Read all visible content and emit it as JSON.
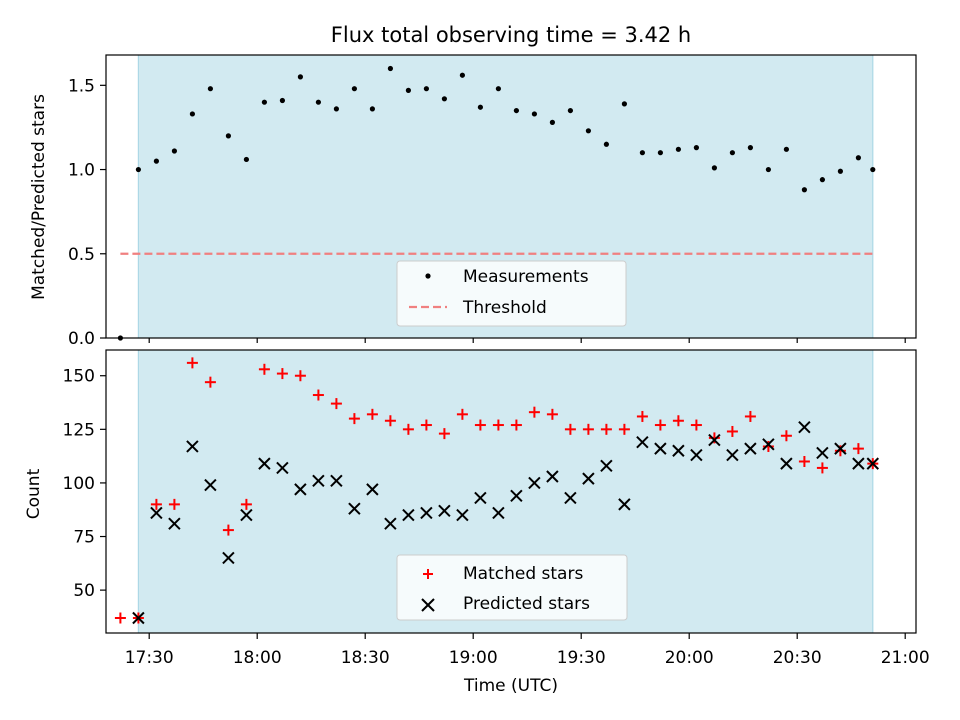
{
  "colors": {
    "background": "#ffffff",
    "observing_window": "#add8e6",
    "measurement": "#000000",
    "threshold": "#f08080",
    "matched": "#ff0000",
    "predicted": "#000000"
  },
  "chart_data": [
    {
      "type": "scatter",
      "title": "Flux total observing time = 3.42 h",
      "xlabel": "",
      "ylabel": "Matched/Predicted stars",
      "xlim": [
        "17:18",
        "21:03"
      ],
      "ylim": [
        0,
        1.68
      ],
      "yticks": [
        "0.0",
        "0.5",
        "1.0",
        "1.5"
      ],
      "observing_window": [
        "17:27",
        "20:51"
      ],
      "threshold": {
        "label": "Threshold",
        "value": 0.5,
        "from": "17:22",
        "to": "20:51"
      },
      "legend": {
        "position": "lower center",
        "entries": [
          "Measurements",
          "Threshold"
        ]
      },
      "series": [
        {
          "name": "Measurements",
          "points": [
            [
              "17:22",
              0.0
            ],
            [
              "17:27",
              1.0
            ],
            [
              "17:32",
              1.05
            ],
            [
              "17:37",
              1.11
            ],
            [
              "17:42",
              1.33
            ],
            [
              "17:47",
              1.48
            ],
            [
              "17:52",
              1.2
            ],
            [
              "17:57",
              1.06
            ],
            [
              "18:02",
              1.4
            ],
            [
              "18:07",
              1.41
            ],
            [
              "18:12",
              1.55
            ],
            [
              "18:17",
              1.4
            ],
            [
              "18:22",
              1.36
            ],
            [
              "18:27",
              1.48
            ],
            [
              "18:32",
              1.36
            ],
            [
              "18:37",
              1.6
            ],
            [
              "18:42",
              1.47
            ],
            [
              "18:47",
              1.48
            ],
            [
              "18:52",
              1.42
            ],
            [
              "18:57",
              1.56
            ],
            [
              "19:02",
              1.37
            ],
            [
              "19:07",
              1.48
            ],
            [
              "19:12",
              1.35
            ],
            [
              "19:17",
              1.33
            ],
            [
              "19:22",
              1.28
            ],
            [
              "19:27",
              1.35
            ],
            [
              "19:32",
              1.23
            ],
            [
              "19:37",
              1.15
            ],
            [
              "19:42",
              1.39
            ],
            [
              "19:47",
              1.1
            ],
            [
              "19:52",
              1.1
            ],
            [
              "19:57",
              1.12
            ],
            [
              "20:02",
              1.13
            ],
            [
              "20:07",
              1.01
            ],
            [
              "20:12",
              1.1
            ],
            [
              "20:17",
              1.13
            ],
            [
              "20:22",
              1.0
            ],
            [
              "20:27",
              1.12
            ],
            [
              "20:32",
              0.88
            ],
            [
              "20:37",
              0.94
            ],
            [
              "20:42",
              0.99
            ],
            [
              "20:47",
              1.07
            ],
            [
              "20:51",
              1.0
            ]
          ]
        }
      ]
    },
    {
      "type": "scatter",
      "title": "",
      "xlabel": "Time (UTC)",
      "ylabel": "Count",
      "xlim": [
        "17:18",
        "21:03"
      ],
      "ylim": [
        30,
        162
      ],
      "xticks": [
        "17:30",
        "18:00",
        "18:30",
        "19:00",
        "19:30",
        "20:00",
        "20:30",
        "21:00"
      ],
      "yticks": [
        "50",
        "75",
        "100",
        "125",
        "150"
      ],
      "observing_window": [
        "17:27",
        "20:51"
      ],
      "legend": {
        "position": "lower center",
        "entries": [
          "Matched stars",
          "Predicted stars"
        ]
      },
      "series": [
        {
          "name": "Matched stars",
          "marker": "plus",
          "points": [
            [
              "17:22",
              37
            ],
            [
              "17:27",
              37
            ],
            [
              "17:32",
              90
            ],
            [
              "17:37",
              90
            ],
            [
              "17:42",
              156
            ],
            [
              "17:47",
              147
            ],
            [
              "17:52",
              78
            ],
            [
              "17:57",
              90
            ],
            [
              "18:02",
              153
            ],
            [
              "18:07",
              151
            ],
            [
              "18:12",
              150
            ],
            [
              "18:17",
              141
            ],
            [
              "18:22",
              137
            ],
            [
              "18:27",
              130
            ],
            [
              "18:32",
              132
            ],
            [
              "18:37",
              129
            ],
            [
              "18:42",
              125
            ],
            [
              "18:47",
              127
            ],
            [
              "18:52",
              123
            ],
            [
              "18:57",
              132
            ],
            [
              "19:02",
              127
            ],
            [
              "19:07",
              127
            ],
            [
              "19:12",
              127
            ],
            [
              "19:17",
              133
            ],
            [
              "19:22",
              132
            ],
            [
              "19:27",
              125
            ],
            [
              "19:32",
              125
            ],
            [
              "19:37",
              125
            ],
            [
              "19:42",
              125
            ],
            [
              "19:47",
              131
            ],
            [
              "19:52",
              127
            ],
            [
              "19:57",
              129
            ],
            [
              "20:02",
              127
            ],
            [
              "20:07",
              121
            ],
            [
              "20:12",
              124
            ],
            [
              "20:17",
              131
            ],
            [
              "20:22",
              117
            ],
            [
              "20:27",
              122
            ],
            [
              "20:32",
              110
            ],
            [
              "20:37",
              107
            ],
            [
              "20:42",
              115
            ],
            [
              "20:47",
              116
            ],
            [
              "20:51",
              109
            ]
          ]
        },
        {
          "name": "Predicted stars",
          "marker": "x",
          "points": [
            [
              "17:27",
              37
            ],
            [
              "17:32",
              86
            ],
            [
              "17:37",
              81
            ],
            [
              "17:42",
              117
            ],
            [
              "17:47",
              99
            ],
            [
              "17:52",
              65
            ],
            [
              "17:57",
              85
            ],
            [
              "18:02",
              109
            ],
            [
              "18:07",
              107
            ],
            [
              "18:12",
              97
            ],
            [
              "18:17",
              101
            ],
            [
              "18:22",
              101
            ],
            [
              "18:27",
              88
            ],
            [
              "18:32",
              97
            ],
            [
              "18:37",
              81
            ],
            [
              "18:42",
              85
            ],
            [
              "18:47",
              86
            ],
            [
              "18:52",
              87
            ],
            [
              "18:57",
              85
            ],
            [
              "19:02",
              93
            ],
            [
              "19:07",
              86
            ],
            [
              "19:12",
              94
            ],
            [
              "19:17",
              100
            ],
            [
              "19:22",
              103
            ],
            [
              "19:27",
              93
            ],
            [
              "19:32",
              102
            ],
            [
              "19:37",
              108
            ],
            [
              "19:42",
              90
            ],
            [
              "19:47",
              119
            ],
            [
              "19:52",
              116
            ],
            [
              "19:57",
              115
            ],
            [
              "20:02",
              113
            ],
            [
              "20:07",
              120
            ],
            [
              "20:12",
              113
            ],
            [
              "20:17",
              116
            ],
            [
              "20:22",
              118
            ],
            [
              "20:27",
              109
            ],
            [
              "20:32",
              126
            ],
            [
              "20:37",
              114
            ],
            [
              "20:42",
              116
            ],
            [
              "20:47",
              109
            ],
            [
              "20:51",
              109
            ]
          ]
        }
      ]
    }
  ]
}
